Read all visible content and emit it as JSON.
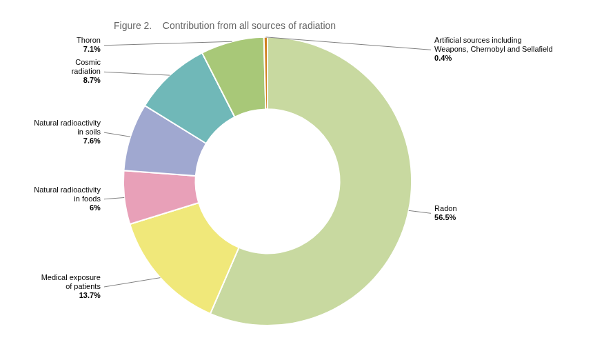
{
  "chart_data": {
    "type": "doughnut",
    "title": "Figure 2.    Contribution from all sources of radiation",
    "categories": [
      "Radon",
      "Medical exposure\nof patients",
      "Natural radioactivity\nin foods",
      "Natural radioactivity\nin soils",
      "Cosmic\nradiation",
      "Thoron",
      "Artificial sources including\nWeapons, Chernobyl and Sellafield"
    ],
    "values": [
      56.5,
      13.7,
      6.0,
      7.6,
      8.7,
      7.1,
      0.4
    ],
    "value_labels": [
      "56.5%",
      "13.7%",
      "6%",
      "7.6%",
      "8.7%",
      "7.1%",
      "0.4%"
    ],
    "colors": [
      "#c8d9a0",
      "#f0e87a",
      "#e8a0b8",
      "#a0a8d0",
      "#70b8b8",
      "#a8c878",
      "#d08020"
    ],
    "data_labels": true
  }
}
